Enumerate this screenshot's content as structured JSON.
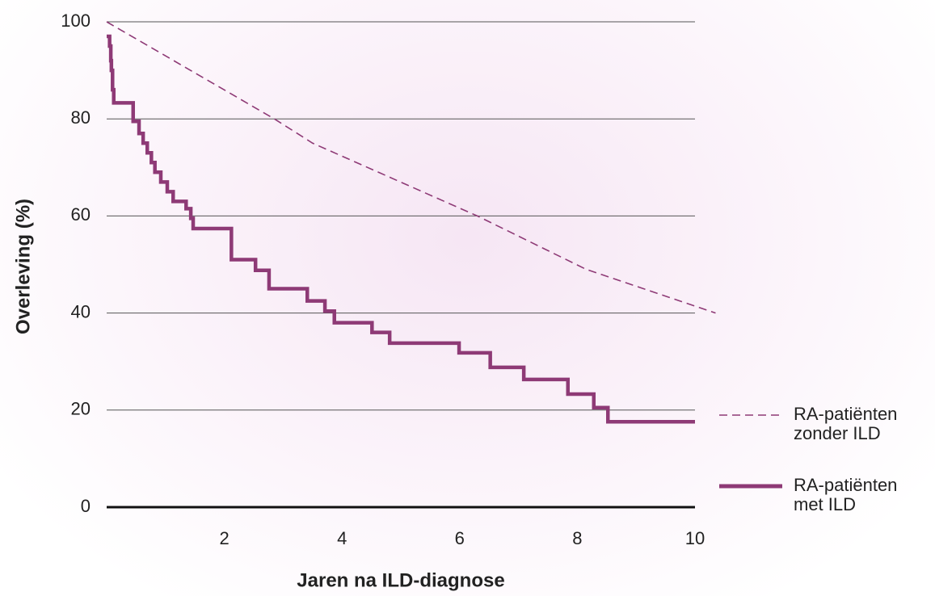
{
  "chart_data": {
    "type": "line",
    "x_label": "Jaren na ILD-diagnose",
    "y_label": "Overleving (%)",
    "xlim": [
      0,
      10
    ],
    "ylim": [
      0,
      100
    ],
    "xticks": [
      2,
      4,
      6,
      8,
      10
    ],
    "yticks": [
      0,
      20,
      40,
      60,
      80,
      100
    ],
    "grid": true,
    "legend": "right",
    "series": [
      {
        "name": "RA-patiënten zonder ILD",
        "color": "#8e3a76",
        "style": "dashed",
        "step": false,
        "x": [
          0,
          2.85,
          3.5,
          6.3,
          8.15,
          10.35
        ],
        "values": [
          100,
          80,
          75,
          60,
          49,
          40
        ]
      },
      {
        "name": "RA-patiënten met ILD",
        "color": "#8e3a76",
        "style": "solid",
        "step": true,
        "x": [
          0,
          0.05,
          0.07,
          0.08,
          0.1,
          0.12,
          0.45,
          0.55,
          0.62,
          0.69,
          0.76,
          0.82,
          0.92,
          1.03,
          1.13,
          1.35,
          1.43,
          1.47,
          2.12,
          2.53,
          2.76,
          3.41,
          3.71,
          3.87,
          4.51,
          4.81,
          5.99,
          6.52,
          7.09,
          7.84,
          8.28,
          8.52,
          10
        ],
        "values": [
          97,
          95,
          92,
          90,
          86,
          83.3,
          79.5,
          77,
          75,
          73,
          71,
          69,
          67,
          65,
          63,
          61.5,
          59.5,
          57.4,
          51,
          48.8,
          45,
          42.5,
          40.4,
          38,
          36,
          33.8,
          31.8,
          28.8,
          26.3,
          23.3,
          20.5,
          17.6,
          17.6
        ]
      }
    ]
  }
}
